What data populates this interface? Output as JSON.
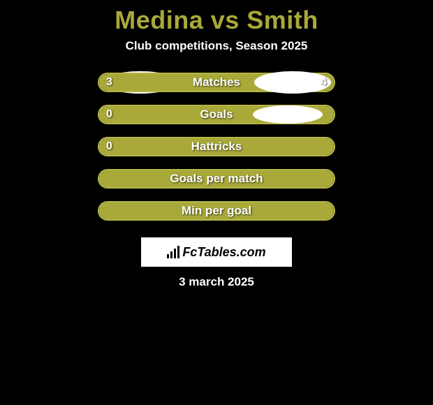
{
  "title": "Medina vs Smith",
  "subtitle": "Club competitions, Season 2025",
  "date": "3 march 2025",
  "colors": {
    "accent": "#a8a939",
    "accent_border": "#b5b646",
    "text": "#ffffff",
    "background": "#000000",
    "logo_bg": "#ffffff"
  },
  "stats": [
    {
      "label": "Matches",
      "left_value": "3",
      "right_value": "4",
      "left_pct": 42,
      "right_pct": 58,
      "show_left_avatar": true,
      "show_right_avatar": true,
      "avatar_variant": "first"
    },
    {
      "label": "Goals",
      "left_value": "0",
      "right_value": "",
      "left_pct": 0,
      "right_pct": 100,
      "show_left_avatar": true,
      "show_right_avatar": true,
      "avatar_variant": "second"
    },
    {
      "label": "Hattricks",
      "left_value": "0",
      "right_value": "",
      "left_pct": 0,
      "right_pct": 100,
      "show_left_avatar": false,
      "show_right_avatar": false
    },
    {
      "label": "Goals per match",
      "left_value": "",
      "right_value": "",
      "left_pct": 0,
      "right_pct": 100,
      "show_left_avatar": false,
      "show_right_avatar": false
    },
    {
      "label": "Min per goal",
      "left_value": "",
      "right_value": "",
      "left_pct": 0,
      "right_pct": 100,
      "show_left_avatar": false,
      "show_right_avatar": false
    }
  ],
  "logo": {
    "text": "FcTables.com"
  }
}
